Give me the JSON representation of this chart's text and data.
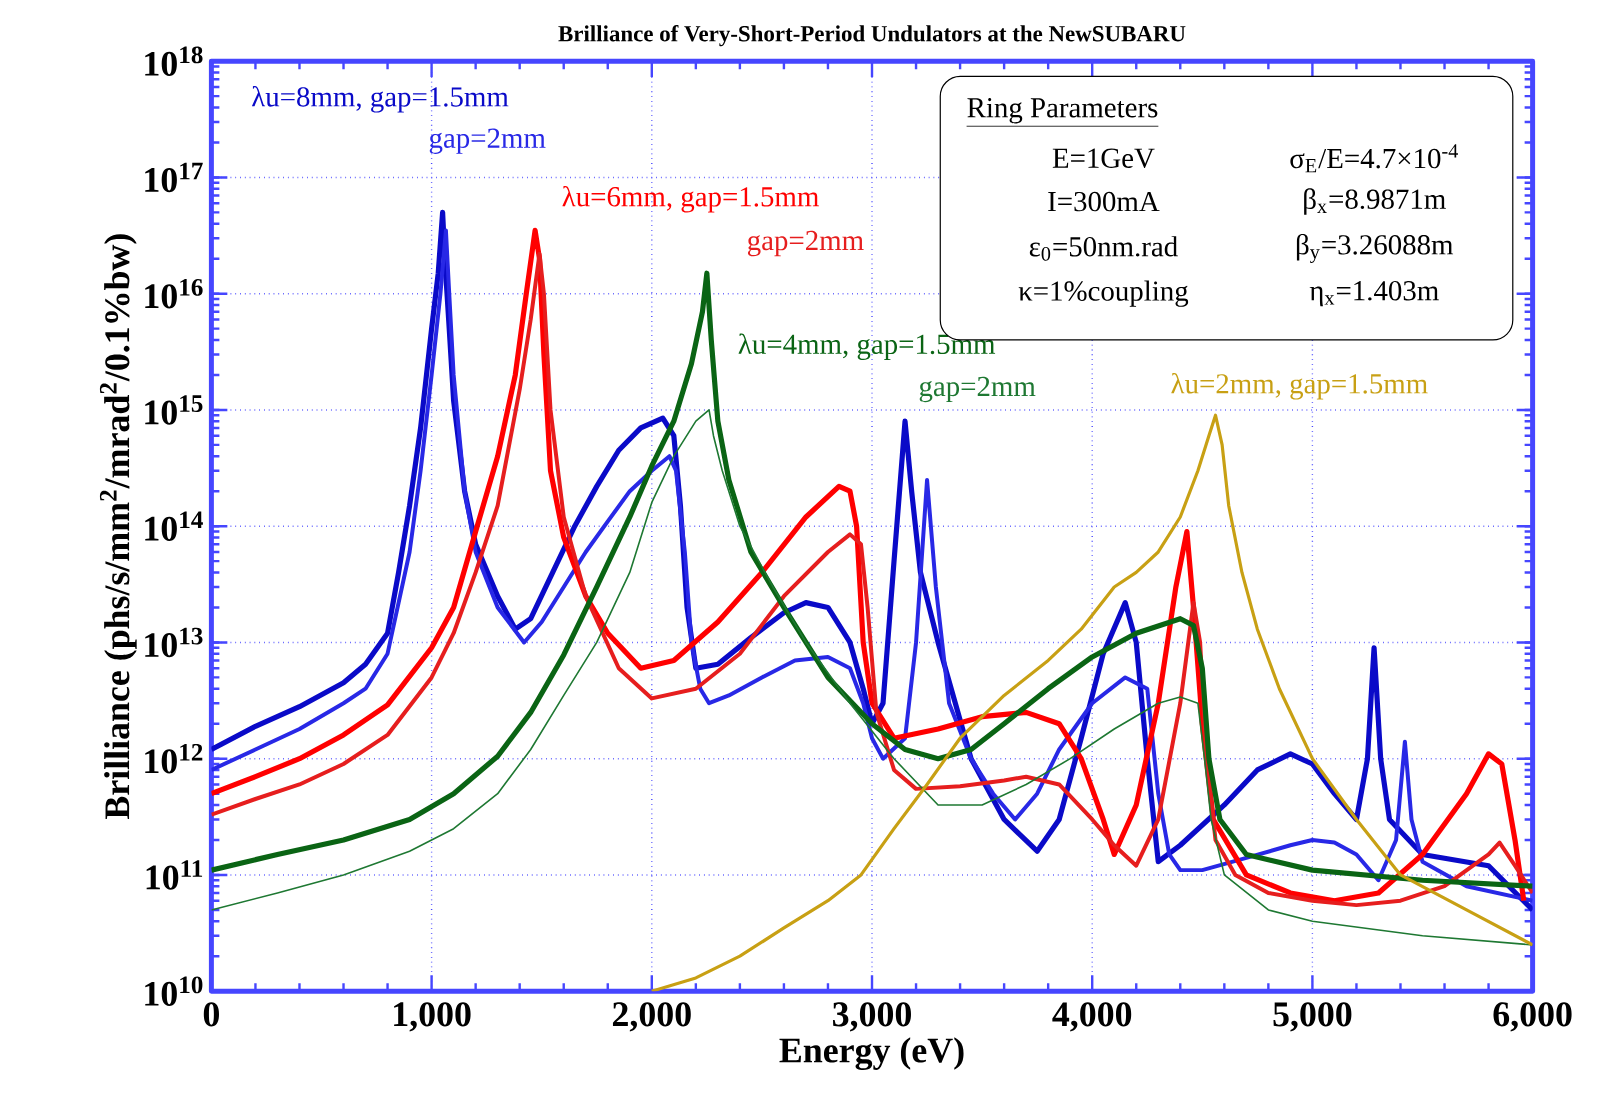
{
  "chart_data": {
    "type": "line",
    "title": "Brilliance of Very-Short-Period Undulators at the NewSUBARU",
    "xlabel": "Energy (eV)",
    "ylabel": "Brilliance (phs/s/mm$^{2}$/mrad$^{2}$/0.1%bw)",
    "xlim": [
      0,
      6000
    ],
    "ylim": [
      10000000000.0,
      1e+18
    ],
    "log": "y",
    "grid": true,
    "legend": "top left",
    "marker": "none",
    "line_style": "solid",
    "xticks": [
      0,
      {
        "value": 1000,
        "label": "1,000"
      },
      {
        "value": 2000,
        "label": "2,000"
      },
      {
        "value": 3000,
        "label": "3,000"
      },
      {
        "value": 4000,
        "label": "4,000"
      },
      {
        "value": 5000,
        "label": "5,000"
      },
      {
        "value": 6000,
        "label": "6,000"
      }
    ],
    "yticks": [
      {
        "value": 10000000000.0,
        "label": "10$^{10}$"
      },
      {
        "value": 100000000000.0,
        "label": "10$^{11}$"
      },
      {
        "value": 1000000000000.0,
        "label": "10$^{12}$"
      },
      {
        "value": 10000000000000.0,
        "label": "10$^{13}$"
      },
      {
        "value": 100000000000000.0,
        "label": "10$^{14}$"
      },
      {
        "value": 1000000000000000.0,
        "label": "10$^{15}$"
      },
      {
        "value": 1e+16,
        "label": "10$^{16}$"
      },
      {
        "value": 1e+17,
        "label": "10$^{17}$"
      },
      {
        "value": 1e+18,
        "label": "10$^{18}$"
      }
    ],
    "series": [
      {
        "name": "λu=8mm, gap=1.5mm",
        "color": "#0a0ac8",
        "x": [
          0,
          200,
          400,
          600,
          700,
          800,
          850,
          900,
          950,
          1000,
          1030,
          1050,
          1060,
          1080,
          1100,
          1150,
          1200,
          1300,
          1380,
          1450,
          1550,
          1650,
          1750,
          1850,
          1950,
          2050,
          2100,
          2130,
          2160,
          2200,
          2300,
          2450,
          2600,
          2700,
          2800,
          2900,
          2960,
          3000,
          3050,
          3100,
          3150,
          3180,
          3220,
          3300,
          3450,
          3600,
          3750,
          3850,
          3950,
          4050,
          4150,
          4200,
          4250,
          4300,
          4400,
          4600,
          4750,
          4900,
          5000,
          5100,
          5200,
          5250,
          5280,
          5310,
          5350,
          5500,
          5800,
          6000
        ],
        "values": [
          1200000000000.0,
          1900000000000.0,
          2800000000000.0,
          4500000000000.0,
          6500000000000.0,
          12000000000000.0,
          40000000000000.0,
          150000000000000.0,
          700000000000000.0,
          5000000000000000.0,
          1.5e+16,
          5e+16,
          2e+16,
          5000000000000000.0,
          1200000000000000.0,
          200000000000000.0,
          70000000000000.0,
          25000000000000.0,
          13000000000000.0,
          16000000000000.0,
          40000000000000.0,
          100000000000000.0,
          220000000000000.0,
          450000000000000.0,
          700000000000000.0,
          850000000000000.0,
          600000000000000.0,
          150000000000000.0,
          20000000000000.0,
          6000000000000.0,
          6500000000000.0,
          11000000000000.0,
          18000000000000.0,
          22000000000000.0,
          20000000000000.0,
          10000000000000.0,
          4000000000000.0,
          2000000000000.0,
          3000000000000.0,
          50000000000000.0,
          800000000000000.0,
          200000000000000.0,
          40000000000000.0,
          10000000000000.0,
          1000000000000.0,
          300000000000.0,
          160000000000.0,
          300000000000.0,
          1500000000000.0,
          8000000000000.0,
          22000000000000.0,
          10000000000000.0,
          1000000000000.0,
          130000000000.0,
          180000000000.0,
          400000000000.0,
          800000000000.0,
          1100000000000.0,
          900000000000.0,
          500000000000.0,
          300000000000.0,
          1000000000000.0,
          9000000000000.0,
          1000000000000.0,
          300000000000.0,
          150000000000.0,
          120000000000.0,
          50000000000.0
        ]
      },
      {
        "name": "gap=2mm",
        "color": "#2828e6",
        "x": [
          0,
          200,
          400,
          600,
          700,
          800,
          900,
          950,
          1000,
          1040,
          1065,
          1080,
          1100,
          1150,
          1200,
          1300,
          1420,
          1500,
          1600,
          1700,
          1800,
          1900,
          2000,
          2080,
          2110,
          2150,
          2180,
          2220,
          2260,
          2350,
          2500,
          2650,
          2800,
          2900,
          2960,
          3000,
          3050,
          3150,
          3200,
          3250,
          3290,
          3350,
          3450,
          3550,
          3650,
          3750,
          3850,
          4000,
          4150,
          4250,
          4300,
          4350,
          4400,
          4500,
          4700,
          4900,
          5000,
          5100,
          5200,
          5300,
          5380,
          5420,
          5450,
          5500,
          5700,
          6000
        ],
        "values": [
          800000000000.0,
          1200000000000.0,
          1800000000000.0,
          3000000000000.0,
          4000000000000.0,
          8000000000000.0,
          60000000000000.0,
          300000000000000.0,
          2000000000000000.0,
          1e+16,
          3.5e+16,
          1e+16,
          2000000000000000.0,
          200000000000000.0,
          60000000000000.0,
          20000000000000.0,
          10000000000000.0,
          15000000000000.0,
          30000000000000.0,
          60000000000000.0,
          110000000000000.0,
          200000000000000.0,
          300000000000000.0,
          400000000000000.0,
          300000000000000.0,
          60000000000000.0,
          10000000000000.0,
          4000000000000.0,
          3000000000000.0,
          3500000000000.0,
          5000000000000.0,
          7000000000000.0,
          7500000000000.0,
          6000000000000.0,
          3000000000000.0,
          1500000000000.0,
          1000000000000.0,
          1500000000000.0,
          10000000000000.0,
          250000000000000.0,
          30000000000000.0,
          3000000000000.0,
          1000000000000.0,
          500000000000.0,
          300000000000.0,
          500000000000.0,
          1200000000000.0,
          3000000000000.0,
          5000000000000.0,
          4000000000000.0,
          500000000000.0,
          150000000000.0,
          110000000000.0,
          110000000000.0,
          140000000000.0,
          180000000000.0,
          200000000000.0,
          190000000000.0,
          150000000000.0,
          90000000000.0,
          200000000000.0,
          1400000000000.0,
          300000000000.0,
          130000000000.0,
          80000000000.0,
          60000000000.0
        ]
      },
      {
        "name": "λu=6mm, gap=1.5mm",
        "color": "#ff0000",
        "x": [
          0,
          200,
          400,
          600,
          800,
          1000,
          1100,
          1200,
          1300,
          1380,
          1430,
          1470,
          1490,
          1510,
          1540,
          1600,
          1700,
          1800,
          1950,
          2100,
          2300,
          2500,
          2700,
          2850,
          2900,
          2930,
          2960,
          3000,
          3100,
          3300,
          3500,
          3700,
          3850,
          3950,
          4050,
          4100,
          4200,
          4300,
          4380,
          4430,
          4460,
          4500,
          4550,
          4700,
          4900,
          5100,
          5300,
          5500,
          5700,
          5800,
          5860,
          5920,
          5960
        ],
        "values": [
          500000000000.0,
          700000000000.0,
          1000000000000.0,
          1600000000000.0,
          2900000000000.0,
          9000000000000.0,
          20000000000000.0,
          90000000000000.0,
          400000000000000.0,
          2000000000000000.0,
          1e+16,
          3.5e+16,
          2e+16,
          3000000000000000.0,
          300000000000000.0,
          80000000000000.0,
          25000000000000.0,
          12000000000000.0,
          6000000000000.0,
          7000000000000.0,
          15000000000000.0,
          40000000000000.0,
          120000000000000.0,
          220000000000000.0,
          200000000000000.0,
          100000000000000.0,
          10000000000000.0,
          3000000000000.0,
          1500000000000.0,
          1800000000000.0,
          2300000000000.0,
          2500000000000.0,
          2000000000000.0,
          1000000000000.0,
          300000000000.0,
          150000000000.0,
          400000000000.0,
          3000000000000.0,
          30000000000000.0,
          90000000000000.0,
          20000000000000.0,
          2000000000000.0,
          300000000000.0,
          100000000000.0,
          70000000000.0,
          60000000000.0,
          70000000000.0,
          150000000000.0,
          500000000000.0,
          1100000000000.0,
          900000000000.0,
          200000000000.0,
          60000000000.0
        ]
      },
      {
        "name": "gap=2mm",
        "color": "#e61e1e",
        "x": [
          0,
          200,
          400,
          600,
          800,
          1000,
          1100,
          1200,
          1300,
          1400,
          1450,
          1490,
          1510,
          1540,
          1600,
          1700,
          1850,
          2000,
          2200,
          2400,
          2600,
          2800,
          2900,
          2950,
          2980,
          3020,
          3100,
          3200,
          3400,
          3600,
          3700,
          3850,
          4000,
          4100,
          4200,
          4300,
          4400,
          4460,
          4490,
          4520,
          4560,
          4650,
          4800,
          5000,
          5200,
          5400,
          5600,
          5800,
          5850,
          5920,
          6000
        ],
        "values": [
          330000000000.0,
          450000000000.0,
          600000000000.0,
          900000000000.0,
          1600000000000.0,
          5000000000000.0,
          12000000000000.0,
          40000000000000.0,
          150000000000000.0,
          1500000000000000.0,
          6000000000000000.0,
          2.2e+16,
          1e+16,
          1000000000000000.0,
          120000000000000.0,
          25000000000000.0,
          6000000000000.0,
          3300000000000.0,
          4000000000000.0,
          8000000000000.0,
          25000000000000.0,
          60000000000000.0,
          85000000000000.0,
          70000000000000.0,
          20000000000000.0,
          2500000000000.0,
          800000000000.0,
          550000000000.0,
          580000000000.0,
          650000000000.0,
          700000000000.0,
          600000000000.0,
          300000000000.0,
          180000000000.0,
          120000000000.0,
          300000000000.0,
          3000000000000.0,
          22000000000000.0,
          10000000000000.0,
          1000000000000.0,
          200000000000.0,
          100000000000.0,
          70000000000.0,
          60000000000.0,
          55000000000.0,
          60000000000.0,
          80000000000.0,
          150000000000.0,
          190000000000.0,
          120000000000.0,
          70000000000.0
        ]
      },
      {
        "name": "λu=4mm, gap=1.5mm",
        "color": "#0a6414",
        "x": [
          0,
          300,
          600,
          900,
          1100,
          1300,
          1450,
          1600,
          1750,
          1900,
          2000,
          2100,
          2180,
          2230,
          2250,
          2270,
          2300,
          2350,
          2450,
          2600,
          2800,
          3000,
          3150,
          3300,
          3450,
          3600,
          3800,
          4000,
          4200,
          4400,
          4460,
          4500,
          4530,
          4580,
          4700,
          5000,
          5500,
          6000
        ],
        "values": [
          110000000000.0,
          150000000000.0,
          200000000000.0,
          300000000000.0,
          500000000000.0,
          1050000000000.0,
          2500000000000.0,
          7800000000000.0,
          30000000000000.0,
          120000000000000.0,
          330000000000000.0,
          800000000000000.0,
          2500000000000000.0,
          7000000000000000.0,
          1.5e+16,
          4000000000000000.0,
          800000000000000.0,
          250000000000000.0,
          60000000000000.0,
          20000000000000.0,
          5000000000000.0,
          2000000000000.0,
          1200000000000.0,
          1000000000000.0,
          1200000000000.0,
          2000000000000.0,
          4000000000000.0,
          7500000000000.0,
          12000000000000.0,
          16000000000000.0,
          14000000000000.0,
          6000000000000.0,
          1000000000000.0,
          300000000000.0,
          150000000000.0,
          110000000000.0,
          90000000000.0,
          80000000000.0
        ]
      },
      {
        "name": "gap=2mm",
        "color": "#1e7832",
        "x": [
          0,
          300,
          600,
          900,
          1100,
          1300,
          1450,
          1600,
          1750,
          1900,
          2000,
          2100,
          2200,
          2260,
          2280,
          2320,
          2400,
          2550,
          2700,
          2900,
          3100,
          3300,
          3500,
          3700,
          3900,
          4100,
          4300,
          4400,
          4480,
          4510,
          4540,
          4600,
          4800,
          5000,
          5500,
          6000
        ],
        "values": [
          50000000000.0,
          70000000000.0,
          100000000000.0,
          160000000000.0,
          250000000000.0,
          500000000000.0,
          1200000000000.0,
          3500000000000.0,
          10000000000000.0,
          40000000000000.0,
          160000000000000.0,
          400000000000000.0,
          800000000000000.0,
          1000000000000000.0,
          600000000000000.0,
          300000000000000.0,
          100000000000000.0,
          30000000000000.0,
          10000000000000.0,
          3000000000000.0,
          1000000000000.0,
          400000000000.0,
          400000000000.0,
          600000000000.0,
          1000000000000.0,
          1800000000000.0,
          3000000000000.0,
          3400000000000.0,
          3000000000000.0,
          1000000000000.0,
          300000000000.0,
          100000000000.0,
          50000000000.0,
          40000000000.0,
          30000000000.0,
          25000000000.0
        ]
      },
      {
        "name": "λu=2mm, gap=1.5mm",
        "color": "#c8a014",
        "x": [
          2000,
          2200,
          2400,
          2600,
          2800,
          2950,
          3100,
          3250,
          3400,
          3600,
          3800,
          3950,
          4100,
          4200,
          4300,
          4400,
          4480,
          4530,
          4560,
          4590,
          4620,
          4680,
          4750,
          4850,
          5000,
          5200,
          5400,
          5700,
          6000
        ],
        "values": [
          10000000000.0,
          13000000000.0,
          20000000000.0,
          35000000000.0,
          60000000000.0,
          100000000000.0,
          250000000000.0,
          600000000000.0,
          1500000000000.0,
          3500000000000.0,
          7000000000000.0,
          13000000000000.0,
          30000000000000.0,
          40000000000000.0,
          60000000000000.0,
          120000000000000.0,
          300000000000000.0,
          600000000000000.0,
          900000000000000.0,
          500000000000000.0,
          150000000000000.0,
          40000000000000.0,
          13000000000000.0,
          4000000000000.0,
          1000000000000.0,
          300000000000.0,
          100000000000.0,
          50000000000.0,
          25000000000.0
        ]
      }
    ],
    "annotations": [
      "Ring Parameters",
      "E=1GeV",
      "σ$_{E}$/E=4.7×10$^{-4}$",
      "I=300mA",
      "β$_{x}$=8.9871m",
      "ε$_{0}$=50nm.rad",
      "β$_{y}$=3.26088m",
      "κ=1%coupling",
      "η$_{x}$=1.403m"
    ]
  }
}
